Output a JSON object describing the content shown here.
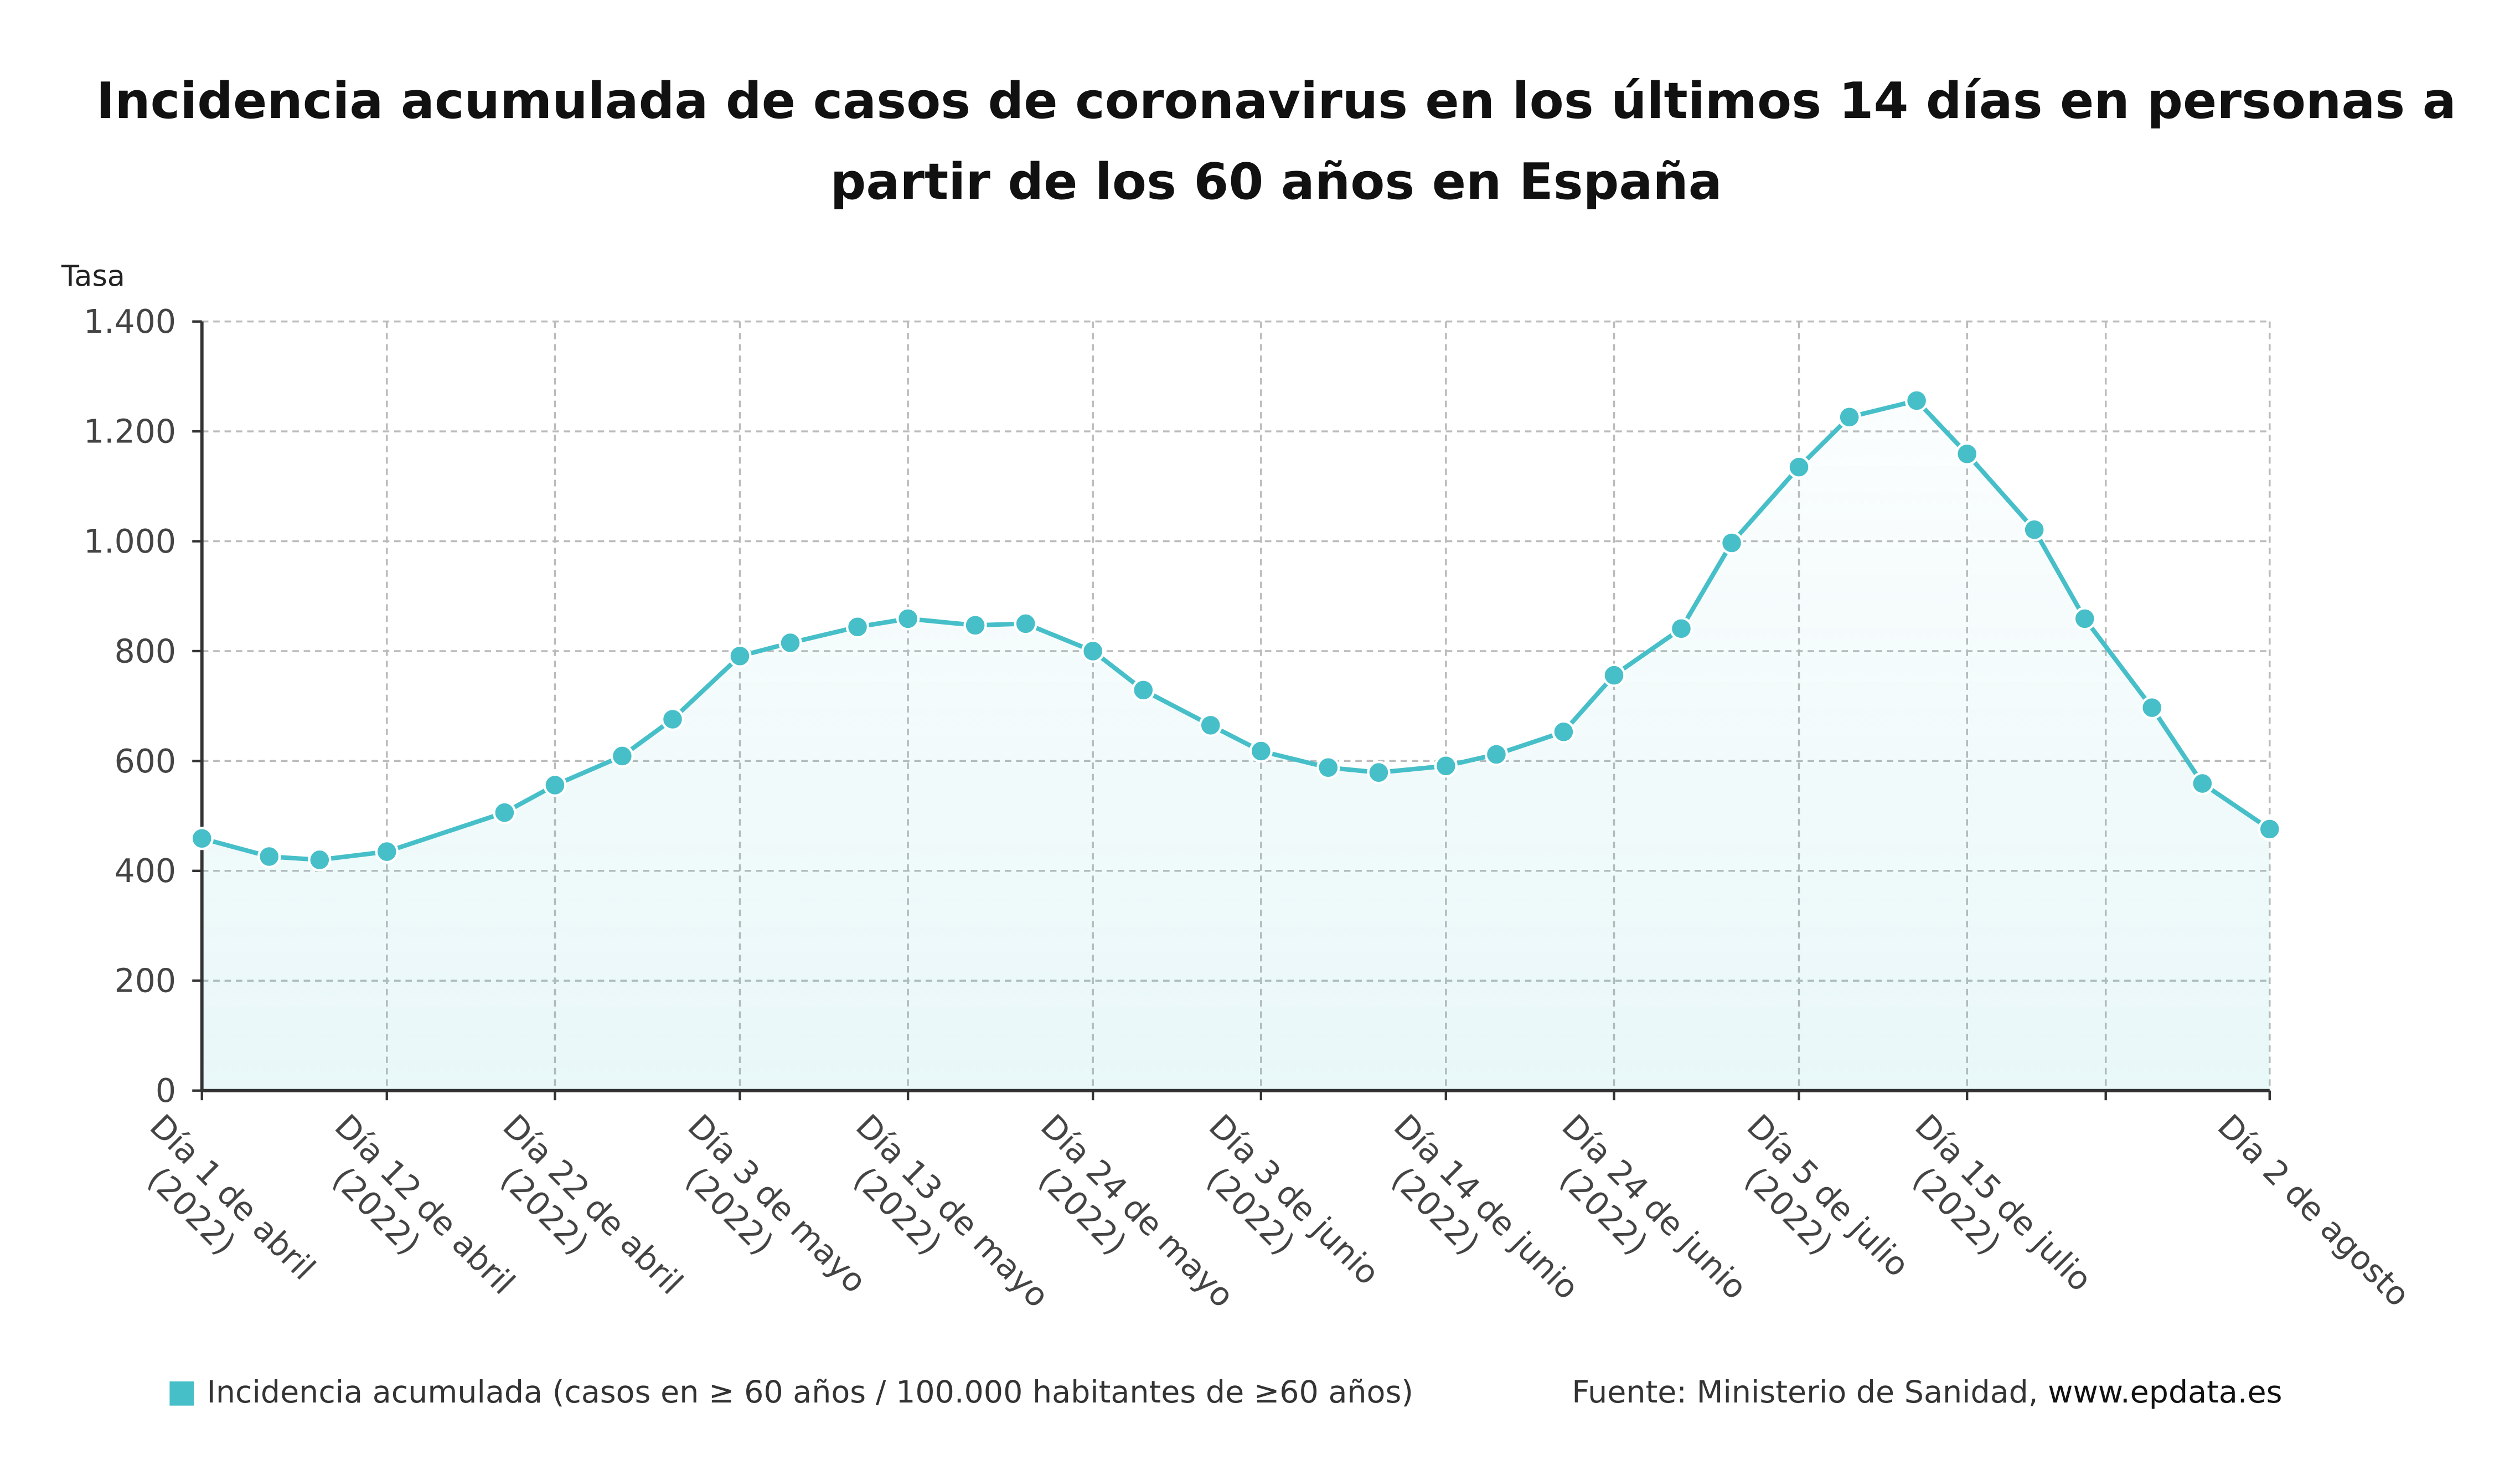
{
  "title": "Incidencia acumulada de casos de coronavirus en los últimos 14 días en personas a partir de los 60 años en España",
  "source_prefix": "Fuente: Ministerio de Sanidad, ",
  "source_site": "www.epdata.es",
  "colors": {
    "series": "#46bfc9",
    "grid": "#bbbbbb"
  },
  "chart_data": {
    "type": "area",
    "title": "Incidencia acumulada de casos de coronavirus en los últimos 14 días en personas a partir de los 60 años en España",
    "ylabel": "Tasa",
    "xlabel": "",
    "ylim": [
      0,
      1400
    ],
    "yticks": [
      0,
      200,
      400,
      600,
      800,
      1000,
      1200,
      1400
    ],
    "ytick_labels": [
      "0",
      "200",
      "400",
      "600",
      "800",
      "1.000",
      "1.200",
      "1.400"
    ],
    "grid": true,
    "legend_position": "bottom-left",
    "xlim_days": [
      0,
      123
    ],
    "xticks": [
      {
        "day": 0,
        "lines": [
          "Día 1 de abril",
          "(2022)"
        ]
      },
      {
        "day": 11,
        "lines": [
          "Día 12 de abril",
          "(2022)"
        ]
      },
      {
        "day": 21,
        "lines": [
          "Día 22 de abril",
          "(2022)"
        ]
      },
      {
        "day": 32,
        "lines": [
          "Día 3 de mayo",
          "(2022)"
        ]
      },
      {
        "day": 42,
        "lines": [
          "Día 13 de mayo",
          "(2022)"
        ]
      },
      {
        "day": 53,
        "lines": [
          "Día 24 de mayo",
          "(2022)"
        ]
      },
      {
        "day": 63,
        "lines": [
          "Día 3 de junio",
          "(2022)"
        ]
      },
      {
        "day": 74,
        "lines": [
          "Día 14 de junio",
          "(2022)"
        ]
      },
      {
        "day": 84,
        "lines": [
          "Día 24 de junio",
          "(2022)"
        ]
      },
      {
        "day": 95,
        "lines": [
          "Día 5 de julio",
          "(2022)"
        ]
      },
      {
        "day": 105,
        "lines": [
          "Día 15 de julio",
          "(2022)"
        ]
      },
      {
        "day": 113.25,
        "lines": []
      },
      {
        "day": 123,
        "lines": [
          "Día 2 de agosto"
        ]
      }
    ],
    "series": [
      {
        "name": "Incidencia acumulada (casos en ≥ 60 años / 100.000 habitantes de ≥60 años)",
        "x_days": [
          0,
          4,
          7,
          11,
          18,
          21,
          25,
          28,
          32,
          35,
          39,
          42,
          46,
          49,
          53,
          56,
          60,
          63,
          67,
          70,
          74,
          77,
          81,
          84,
          88,
          91,
          95,
          98,
          102,
          105,
          109,
          112,
          116,
          119,
          123
        ],
        "values": [
          459,
          426,
          420,
          435,
          506,
          556,
          609,
          676,
          791,
          815,
          844,
          859,
          847,
          850,
          800,
          729,
          665,
          618,
          588,
          579,
          591,
          612,
          653,
          756,
          841,
          997,
          1135,
          1226,
          1256,
          1159,
          1021,
          859,
          697,
          559,
          476
        ]
      }
    ]
  }
}
